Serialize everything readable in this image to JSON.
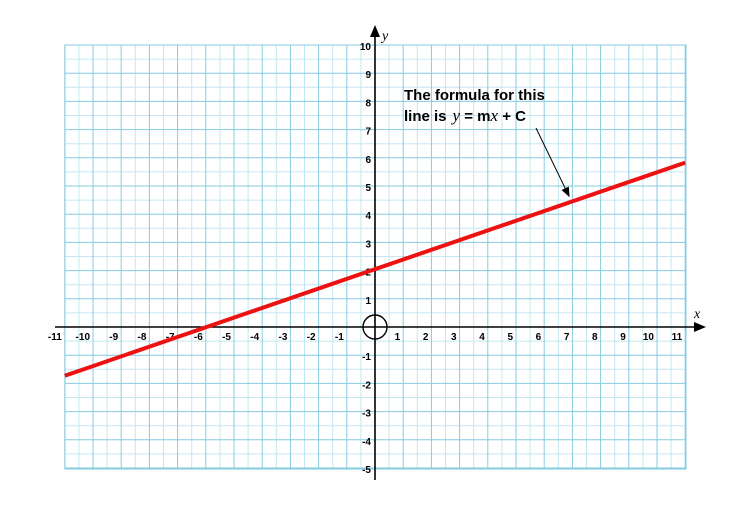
{
  "chart_data": {
    "type": "line",
    "title": "",
    "xlabel": "x",
    "ylabel": "y",
    "xlim": [
      -11,
      11
    ],
    "ylim": [
      -5,
      10
    ],
    "x_ticks": [
      -11,
      -10,
      -9,
      -8,
      -7,
      -6,
      -5,
      -4,
      -3,
      -2,
      -1,
      1,
      2,
      3,
      4,
      5,
      6,
      7,
      8,
      9,
      10,
      11
    ],
    "y_ticks": [
      -5,
      -4,
      -3,
      -2,
      -1,
      1,
      2,
      3,
      4,
      5,
      6,
      7,
      8,
      9,
      10
    ],
    "grid": true,
    "minor_grid": true,
    "series": [
      {
        "x": [
          -11,
          11
        ],
        "y": [
          -1.73,
          5.83
        ],
        "color": "#ee1111"
      }
    ],
    "origin_circle": true,
    "annotation": {
      "line1": "The formula for this",
      "line2_prefix": "line is",
      "formula_y": "y",
      "formula_eq_m": " = m",
      "formula_x": "x",
      "formula_rest": " + C",
      "arrow_to": [
        6.9,
        4.6
      ]
    },
    "colors": {
      "grid_major": "#86cce0",
      "grid_minor": "#c5e6f0",
      "axis": "#000000",
      "line": "#ee1111"
    }
  }
}
